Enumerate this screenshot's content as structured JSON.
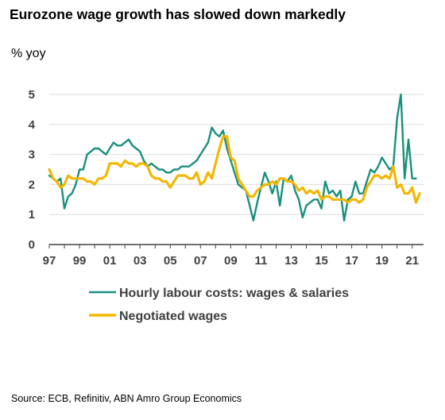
{
  "header": {
    "title": "Eurozone wage growth has slowed down markedly",
    "unit": "% yoy"
  },
  "footer": {
    "source": "Source: ECB, Refinitiv, ABN Amro Group Economics"
  },
  "colors": {
    "hourly": "#1a8f7d",
    "negotiated": "#f2b705",
    "grid": "#dcdcdc",
    "axis": "#404040"
  },
  "chart_data": {
    "type": "line",
    "title": "Eurozone wage growth has slowed down markedly",
    "ylabel": "% yoy",
    "xlim": [
      1997,
      2021.75
    ],
    "ylim": [
      0,
      5
    ],
    "y_ticks": [
      0,
      1,
      2,
      3,
      4,
      5
    ],
    "x_ticks": [
      {
        "value": 1997,
        "label": "97"
      },
      {
        "value": 1999,
        "label": "99"
      },
      {
        "value": 2001,
        "label": "01"
      },
      {
        "value": 2003,
        "label": "03"
      },
      {
        "value": 2005,
        "label": "05"
      },
      {
        "value": 2007,
        "label": "07"
      },
      {
        "value": 2009,
        "label": "09"
      },
      {
        "value": 2011,
        "label": "11"
      },
      {
        "value": 2013,
        "label": "13"
      },
      {
        "value": 2015,
        "label": "15"
      },
      {
        "value": 2017,
        "label": "17"
      },
      {
        "value": 2019,
        "label": "19"
      },
      {
        "value": 2021,
        "label": "21"
      }
    ],
    "grid": "horizontal",
    "legend": "bottom-center",
    "series": [
      {
        "name": "Hourly labour costs: wages & salaries",
        "color": "#1a8f7d",
        "x": [
          1997.0,
          1997.25,
          1997.5,
          1997.75,
          1998.0,
          1998.25,
          1998.5,
          1998.75,
          1999.0,
          1999.25,
          1999.5,
          1999.75,
          2000.0,
          2000.25,
          2000.5,
          2000.75,
          2001.0,
          2001.25,
          2001.5,
          2001.75,
          2002.0,
          2002.25,
          2002.5,
          2002.75,
          2003.0,
          2003.25,
          2003.5,
          2003.75,
          2004.0,
          2004.25,
          2004.5,
          2004.75,
          2005.0,
          2005.25,
          2005.5,
          2005.75,
          2006.0,
          2006.25,
          2006.5,
          2006.75,
          2007.0,
          2007.25,
          2007.5,
          2007.75,
          2008.0,
          2008.25,
          2008.5,
          2008.75,
          2009.0,
          2009.25,
          2009.5,
          2009.75,
          2010.0,
          2010.25,
          2010.5,
          2010.75,
          2011.0,
          2011.25,
          2011.5,
          2011.75,
          2012.0,
          2012.25,
          2012.5,
          2012.75,
          2013.0,
          2013.25,
          2013.5,
          2013.75,
          2014.0,
          2014.25,
          2014.5,
          2014.75,
          2015.0,
          2015.25,
          2015.5,
          2015.75,
          2016.0,
          2016.25,
          2016.5,
          2016.75,
          2017.0,
          2017.25,
          2017.5,
          2017.75,
          2018.0,
          2018.25,
          2018.5,
          2018.75,
          2019.0,
          2019.25,
          2019.5,
          2019.75,
          2020.0,
          2020.25,
          2020.5,
          2020.75,
          2021.0,
          2021.25
        ],
        "values": [
          2.3,
          2.2,
          2.1,
          2.2,
          1.2,
          1.6,
          1.7,
          2.0,
          2.5,
          2.5,
          3.0,
          3.1,
          3.2,
          3.2,
          3.1,
          3.0,
          3.2,
          3.4,
          3.3,
          3.3,
          3.4,
          3.5,
          3.3,
          3.2,
          3.1,
          2.8,
          2.6,
          2.7,
          2.6,
          2.5,
          2.5,
          2.4,
          2.4,
          2.5,
          2.5,
          2.6,
          2.6,
          2.6,
          2.7,
          2.8,
          3.0,
          3.2,
          3.4,
          3.9,
          3.7,
          3.6,
          3.8,
          3.2,
          2.8,
          2.4,
          2.0,
          1.9,
          1.8,
          1.3,
          0.8,
          1.4,
          1.9,
          2.4,
          2.1,
          1.7,
          2.1,
          1.3,
          2.2,
          2.1,
          2.3,
          1.8,
          1.5,
          0.9,
          1.3,
          1.4,
          1.5,
          1.5,
          1.2,
          2.1,
          1.7,
          1.8,
          1.6,
          1.8,
          0.8,
          1.5,
          1.6,
          2.1,
          1.7,
          1.7,
          2.1,
          2.5,
          2.4,
          2.6,
          2.9,
          2.7,
          2.5,
          2.6,
          4.2,
          5.0,
          2.2,
          3.5,
          2.2,
          2.2
        ]
      },
      {
        "name": "Negotiated wages",
        "color": "#f2b705",
        "x": [
          1997.0,
          1997.25,
          1997.5,
          1997.75,
          1998.0,
          1998.25,
          1998.5,
          1998.75,
          1999.0,
          1999.25,
          1999.5,
          1999.75,
          2000.0,
          2000.25,
          2000.5,
          2000.75,
          2001.0,
          2001.25,
          2001.5,
          2001.75,
          2002.0,
          2002.25,
          2002.5,
          2002.75,
          2003.0,
          2003.25,
          2003.5,
          2003.75,
          2004.0,
          2004.25,
          2004.5,
          2004.75,
          2005.0,
          2005.25,
          2005.5,
          2005.75,
          2006.0,
          2006.25,
          2006.5,
          2006.75,
          2007.0,
          2007.25,
          2007.5,
          2007.75,
          2008.0,
          2008.25,
          2008.5,
          2008.75,
          2009.0,
          2009.25,
          2009.5,
          2009.75,
          2010.0,
          2010.25,
          2010.5,
          2010.75,
          2011.0,
          2011.25,
          2011.5,
          2011.75,
          2012.0,
          2012.25,
          2012.5,
          2012.75,
          2013.0,
          2013.25,
          2013.5,
          2013.75,
          2014.0,
          2014.25,
          2014.5,
          2014.75,
          2015.0,
          2015.25,
          2015.5,
          2015.75,
          2016.0,
          2016.25,
          2016.5,
          2016.75,
          2017.0,
          2017.25,
          2017.5,
          2017.75,
          2018.0,
          2018.25,
          2018.5,
          2018.75,
          2019.0,
          2019.25,
          2019.5,
          2019.75,
          2020.0,
          2020.25,
          2020.5,
          2020.75,
          2021.0,
          2021.25,
          2021.5
        ],
        "values": [
          2.5,
          2.2,
          2.1,
          1.9,
          2.0,
          2.3,
          2.2,
          2.2,
          2.2,
          2.2,
          2.1,
          2.1,
          2.0,
          2.2,
          2.2,
          2.3,
          2.7,
          2.7,
          2.7,
          2.6,
          2.8,
          2.7,
          2.7,
          2.6,
          2.7,
          2.7,
          2.6,
          2.3,
          2.2,
          2.2,
          2.1,
          2.1,
          1.9,
          2.1,
          2.3,
          2.3,
          2.3,
          2.2,
          2.2,
          2.4,
          2.0,
          2.1,
          2.4,
          2.2,
          2.7,
          3.2,
          3.6,
          3.6,
          2.9,
          2.8,
          2.2,
          2.0,
          1.8,
          1.6,
          1.6,
          1.8,
          1.9,
          2.0,
          2.0,
          2.1,
          2.0,
          2.2,
          2.2,
          2.1,
          2.1,
          2.0,
          1.8,
          1.9,
          1.7,
          1.8,
          1.7,
          1.8,
          1.5,
          1.6,
          1.6,
          1.5,
          1.5,
          1.5,
          1.5,
          1.4,
          1.5,
          1.5,
          1.4,
          1.5,
          1.9,
          2.1,
          2.3,
          2.3,
          2.2,
          2.3,
          2.2,
          2.6,
          1.9,
          2.0,
          1.7,
          1.7,
          1.9,
          1.4,
          1.7
        ]
      }
    ]
  }
}
